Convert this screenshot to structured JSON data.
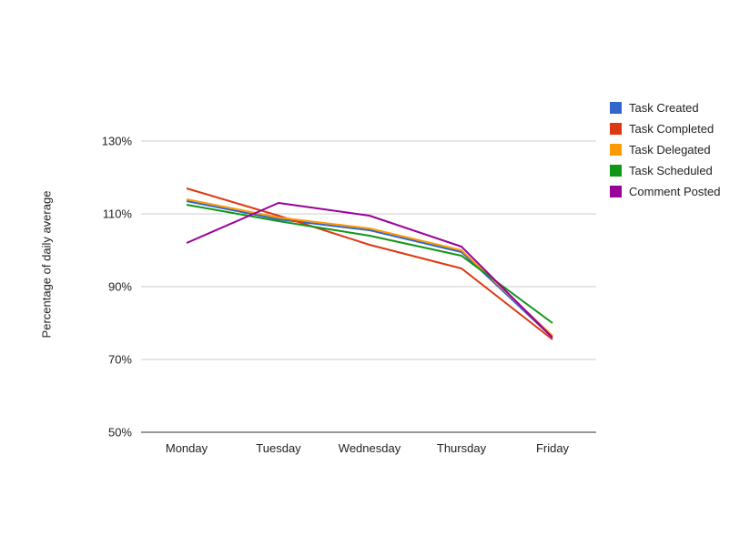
{
  "page": {
    "background": "#ffffff"
  },
  "chart_data": {
    "type": "line",
    "title": "",
    "xlabel": "",
    "ylabel": "Percentage of daily average",
    "categories": [
      "Monday",
      "Tuesday",
      "Wednesday",
      "Thursday",
      "Friday"
    ],
    "series": [
      {
        "name": "Task Created",
        "color": "#3366CC",
        "values": [
          113.5,
          108.5,
          105.5,
          99.5,
          76
        ]
      },
      {
        "name": "Task Completed",
        "color": "#DC3912",
        "values": [
          117,
          109.5,
          101.5,
          95,
          75.5
        ]
      },
      {
        "name": "Task Delegated",
        "color": "#FF9900",
        "values": [
          114,
          109,
          106,
          100,
          76.5
        ]
      },
      {
        "name": "Task Scheduled",
        "color": "#109618",
        "values": [
          112.5,
          108,
          104,
          98.5,
          80
        ]
      },
      {
        "name": "Comment Posted",
        "color": "#990099",
        "values": [
          102,
          113,
          109.5,
          101,
          76
        ]
      }
    ],
    "ylim": [
      50,
      130
    ],
    "yticks": [
      50,
      70,
      90,
      110,
      130
    ],
    "ytick_format": "{v}%",
    "grid": true,
    "legend_position": "right",
    "line_width": 2,
    "axis_colors": {
      "gridline": "#cccccc",
      "baseline": "#333333",
      "tick_text": "#222222"
    }
  }
}
